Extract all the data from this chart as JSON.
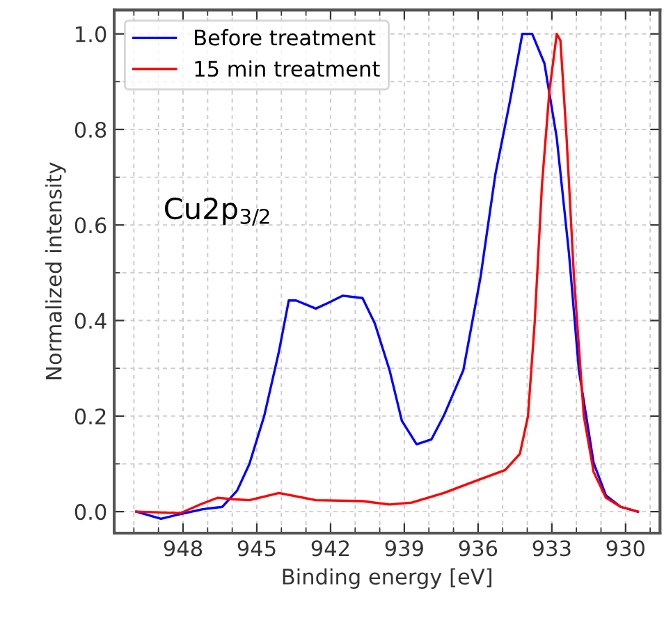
{
  "chart_data": {
    "type": "line",
    "xlabel": "Binding energy [eV]",
    "ylabel": "Normalized intensity",
    "annotations": [
      "Cu2p$_{3/2}$"
    ],
    "xlim": [
      950.8,
      928.6
    ],
    "ylim": [
      -0.045,
      1.05
    ],
    "xticks": [
      948,
      945,
      942,
      939,
      936,
      933,
      930
    ],
    "yticks": [
      {
        "value": 0,
        "label": "0.0"
      },
      0.2,
      0.4,
      0.6,
      0.8,
      {
        "value": 1,
        "label": "1.0"
      }
    ],
    "grid": true,
    "legend": "top left",
    "marker": "none",
    "line_style": "solid",
    "series": [
      {
        "name": "Before treatment",
        "color": "#0000ff",
        "x": [
          949.9,
          948.9,
          948.1,
          947.2,
          946.4,
          945.8,
          945.3,
          944.7,
          944.1,
          943.7,
          943.4,
          942.6,
          942.1,
          941.5,
          940.7,
          940.2,
          939.6,
          939.1,
          938.5,
          937.9,
          937.4,
          936.6,
          935.9,
          935.3,
          934.7,
          934.2,
          933.8,
          933.3,
          932.8,
          932.3,
          931.9,
          931.3,
          930.8,
          930.2,
          929.5
        ],
        "values": [
          0,
          -0.015,
          -0.005,
          0.005,
          0.01,
          0.044,
          0.1,
          0.2,
          0.335,
          0.442,
          0.442,
          0.425,
          0.437,
          0.452,
          0.447,
          0.394,
          0.296,
          0.19,
          0.141,
          0.151,
          0.2,
          0.296,
          0.491,
          0.705,
          0.86,
          1.0,
          1.0,
          0.938,
          0.782,
          0.539,
          0.296,
          0.102,
          0.034,
          0.01,
          0
        ]
      },
      {
        "name": "15 min treatment",
        "color": "#ff0000",
        "x": [
          949.9,
          948.1,
          947.3,
          946.6,
          946.0,
          945.3,
          944.1,
          943.4,
          942.6,
          940.7,
          939.6,
          938.7,
          937.4,
          935.9,
          934.9,
          934.3,
          933.97,
          933.7,
          933.4,
          933.1,
          932.8,
          932.65,
          932.4,
          932.1,
          931.7,
          931.3,
          930.8,
          930.2,
          929.5
        ],
        "values": [
          0,
          -0.003,
          0.015,
          0.029,
          0.026,
          0.024,
          0.039,
          0.032,
          0.024,
          0.022,
          0.015,
          0.019,
          0.039,
          0.068,
          0.087,
          0.121,
          0.2,
          0.394,
          0.685,
          0.88,
          1.0,
          0.986,
          0.782,
          0.491,
          0.2,
          0.083,
          0.029,
          0.01,
          0
        ]
      }
    ]
  }
}
